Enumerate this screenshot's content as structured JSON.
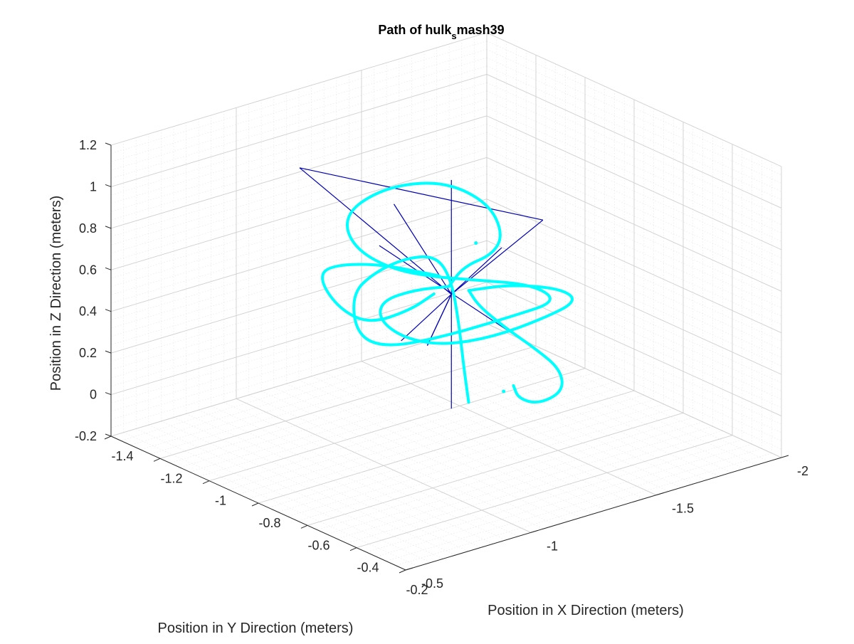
{
  "chart_data": {
    "type": "line",
    "projection": "3d",
    "title": "Path of hulk",
    "title_subscript": "s",
    "title_suffix": "mash39",
    "xlabel": "Position in X Direction (meters)",
    "ylabel": "Position in Y Direction (meters)",
    "zlabel": "Position in Z Direction (meters)",
    "xlim": [
      -1.4,
      -0.2
    ],
    "ylim": [
      -2,
      -0.5
    ],
    "zlim": [
      -0.2,
      1.2
    ],
    "xticks": [
      "-1.4",
      "-1.2",
      "-1",
      "-0.8",
      "-0.6",
      "-0.4",
      "-0.2"
    ],
    "yticks": [
      "-2",
      "-1.5",
      "-1",
      "-0.5"
    ],
    "zticks": [
      "-0.2",
      "0",
      "0.2",
      "0.4",
      "0.6",
      "0.8",
      "1",
      "1.2"
    ],
    "grid": true,
    "minor_grid": true,
    "colors": {
      "path": "#00ffff",
      "reference_lines": "#0000b4",
      "grid_major": "#d0d0d0",
      "grid_minor": "#e4e4e4",
      "axis": "#262626"
    },
    "reference_center": [
      -0.83,
      -1.3,
      0.5
    ],
    "reference_lines": [
      {
        "from": [
          -0.3,
          -0.58,
          0.82
        ],
        "to": [
          -1.36,
          -2.02,
          0.18
        ]
      },
      {
        "from": [
          -0.83,
          -1.3,
          0.5
        ],
        "to": [
          -0.83,
          -1.3,
          1.05
        ]
      },
      {
        "from": [
          -0.83,
          -1.3,
          0.5
        ],
        "to": [
          -0.83,
          -1.3,
          -0.05
        ]
      },
      {
        "from": [
          -0.94,
          -1.12,
          0.74
        ],
        "to": [
          -0.72,
          -1.48,
          0.27
        ]
      },
      {
        "from": [
          -0.83,
          -1.3,
          0.5
        ],
        "to": [
          -1.04,
          -0.9,
          1.14
        ]
      },
      {
        "from": [
          -1.04,
          -0.9,
          1.14
        ],
        "to": [
          -0.6,
          -1.44,
          0.93
        ]
      },
      {
        "from": [
          -0.6,
          -1.44,
          0.93
        ],
        "to": [
          -0.83,
          -1.3,
          0.5
        ]
      },
      {
        "from": [
          -0.83,
          -1.3,
          0.5
        ],
        "to": [
          -1.03,
          -1.4,
          0.11
        ]
      },
      {
        "from": [
          -1.03,
          -1.4,
          0.11
        ],
        "to": [
          -0.83,
          -1.3,
          0.5
        ]
      },
      {
        "from": [
          -0.83,
          -1.3,
          0.5
        ],
        "to": [
          -0.86,
          -1.1,
          0.99
        ]
      }
    ],
    "path_segments": [
      [
        [
          -0.78,
          -1.32,
          0.0
        ],
        [
          -0.8,
          -1.32,
          0.16
        ],
        [
          -0.82,
          -1.32,
          0.36
        ],
        [
          -0.84,
          -1.31,
          0.56
        ],
        [
          -0.87,
          -1.28,
          0.67
        ],
        [
          -0.92,
          -1.21,
          0.66
        ],
        [
          -0.96,
          -1.12,
          0.6
        ],
        [
          -0.97,
          -1.04,
          0.52
        ],
        [
          -0.93,
          -1.02,
          0.35
        ],
        [
          -0.87,
          -1.08,
          0.3
        ],
        [
          -0.77,
          -1.22,
          0.36
        ],
        [
          -0.68,
          -1.4,
          0.44
        ],
        [
          -0.62,
          -1.52,
          0.5
        ],
        [
          -0.66,
          -1.46,
          0.58
        ],
        [
          -0.76,
          -1.32,
          0.6
        ],
        [
          -0.84,
          -1.24,
          0.6
        ],
        [
          -0.92,
          -1.16,
          0.62
        ],
        [
          -0.96,
          -1.06,
          0.72
        ],
        [
          -0.96,
          -1.0,
          0.86
        ],
        [
          -0.92,
          -1.0,
          0.99
        ],
        [
          -0.84,
          -1.08,
          1.1
        ],
        [
          -0.75,
          -1.2,
          1.12
        ],
        [
          -0.68,
          -1.3,
          1.02
        ],
        [
          -0.67,
          -1.35,
          0.86
        ],
        [
          -0.71,
          -1.35,
          0.74
        ],
        [
          -0.78,
          -1.3,
          0.66
        ],
        [
          -0.82,
          -1.28,
          0.55
        ]
      ],
      [
        [
          -0.82,
          -1.28,
          0.55
        ],
        [
          -0.88,
          -1.2,
          0.53
        ],
        [
          -0.93,
          -1.12,
          0.48
        ],
        [
          -0.92,
          -1.1,
          0.4
        ],
        [
          -0.86,
          -1.14,
          0.33
        ],
        [
          -0.78,
          -1.22,
          0.31
        ],
        [
          -0.7,
          -1.34,
          0.35
        ],
        [
          -0.64,
          -1.48,
          0.42
        ],
        [
          -0.6,
          -1.58,
          0.49
        ],
        [
          -0.64,
          -1.55,
          0.54
        ],
        [
          -0.73,
          -1.44,
          0.55
        ],
        [
          -0.8,
          -1.34,
          0.52
        ]
      ],
      [
        [
          -0.8,
          -1.34,
          0.52
        ],
        [
          -0.78,
          -1.36,
          0.45
        ],
        [
          -0.74,
          -1.42,
          0.35
        ],
        [
          -0.69,
          -1.5,
          0.24
        ],
        [
          -0.65,
          -1.56,
          0.14
        ],
        [
          -0.64,
          -1.56,
          0.04
        ],
        [
          -0.68,
          -1.5,
          -0.02
        ],
        [
          -0.72,
          -1.46,
          0.0
        ],
        [
          -0.73,
          -1.45,
          0.06
        ]
      ],
      [
        [
          -0.86,
          -1.28,
          0.58
        ],
        [
          -0.96,
          -1.13,
          0.64
        ],
        [
          -1.05,
          -1.02,
          0.62
        ],
        [
          -1.06,
          -1.0,
          0.55
        ],
        [
          -1.02,
          -1.04,
          0.42
        ],
        [
          -0.96,
          -1.1,
          0.36
        ],
        [
          -0.9,
          -1.2,
          0.42
        ],
        [
          -0.86,
          -1.26,
          0.5
        ]
      ]
    ],
    "path_dots": [
      [
        -0.76,
        -1.44,
        0.02
      ],
      [
        -0.73,
        -1.3,
        0.8
      ]
    ]
  }
}
